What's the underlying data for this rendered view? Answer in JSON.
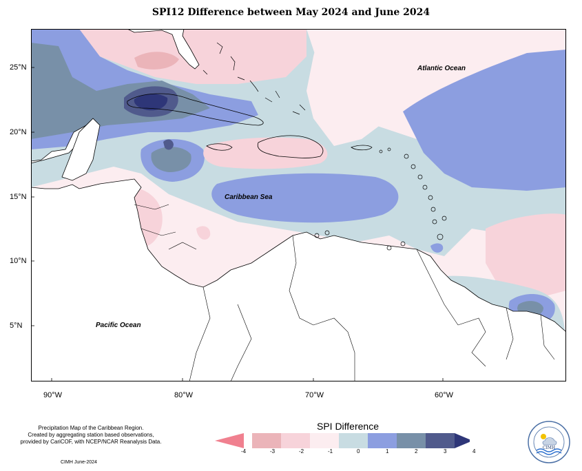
{
  "title": "SPI12 Difference between May 2024 and June 2024",
  "latitude_labels": [
    "25°N",
    "20°N",
    "15°N",
    "10°N",
    "5°N"
  ],
  "longitude_labels": [
    "90°W",
    "80°W",
    "70°W",
    "60°W"
  ],
  "ocean_labels": {
    "atlantic": "Atlantic Ocean",
    "caribbean": "Caribbean Sea",
    "pacific": "Pacific Ocean"
  },
  "credit": {
    "line1": "Precipitation Map of the Caribbean Region.",
    "line2": "Created by aggregating station based observations,",
    "line3": "provided by CariCOF, with NCEP/NCAR Reanalysis Data.",
    "date": "CIMH June-2024"
  },
  "legend": {
    "title": "SPI Difference",
    "ticks": [
      "-4",
      "-3",
      "-2",
      "-1",
      "0",
      "1",
      "2",
      "3",
      "4"
    ],
    "colors": [
      "#f0808f",
      "#ebb4b9",
      "#f7d3da",
      "#fcedf0",
      "#c8dce2",
      "#8c9ee0",
      "#7890a8",
      "#505a8c",
      "#2e3678"
    ]
  },
  "logo": {
    "ring_text": "Caribbean Institute for Meteorology and Hydrology",
    "name": "CIMH"
  },
  "map": {
    "extent": {
      "lon_min": -92,
      "lon_max": -51,
      "lat_min": 0.5,
      "lat_max": 28
    },
    "land_color": "#ffffff",
    "ocean_base_color": "#fcedf0"
  }
}
